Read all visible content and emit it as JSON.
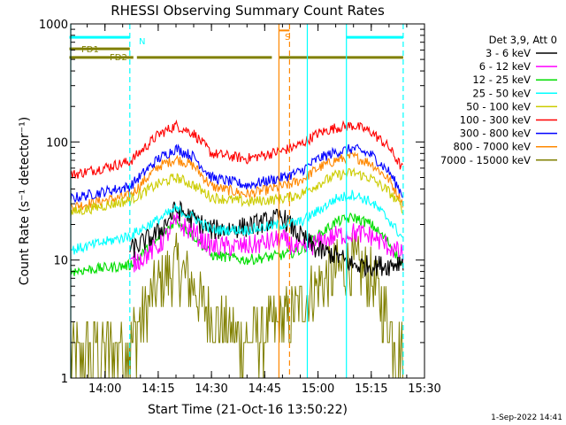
{
  "chart_data": {
    "type": "line",
    "title": "RHESSI Observing Summary Count Rates",
    "xlabel": "Start Time (21-Oct-16 13:50:22)",
    "ylabel": "Count Rate (s⁻¹ detector⁻¹)",
    "x_unit": "minutes after 13:50:22",
    "xlim": [
      "13:50:22",
      "15:30"
    ],
    "ylim": [
      1,
      1000
    ],
    "y_scale": "log",
    "grid": false,
    "x_ticks": [
      "14:00",
      "14:15",
      "14:30",
      "14:45",
      "15:00",
      "15:15",
      "15:30"
    ],
    "y_ticks": [
      "1",
      "10",
      "100",
      "1000"
    ],
    "legend_title": "Det 3,9, Att 0",
    "legend_position": "right",
    "footer": "1-Sep-2022 14:41",
    "series": [
      {
        "name": "3 - 6 keV",
        "color": "#000000",
        "x": [
          "14:07",
          "14:15",
          "14:20",
          "14:25",
          "14:30",
          "14:40",
          "14:50",
          "14:55",
          "15:00",
          "15:05",
          "15:10",
          "15:15",
          "15:20",
          "15:24"
        ],
        "values": [
          12,
          17,
          27,
          22,
          18,
          19,
          23,
          16,
          12,
          11,
          9,
          9,
          9,
          10
        ]
      },
      {
        "name": "6 - 12 keV",
        "color": "#ff00ff",
        "x": [
          "14:07",
          "14:15",
          "14:20",
          "14:25",
          "14:30",
          "14:40",
          "14:50",
          "14:55",
          "15:00",
          "15:05",
          "15:10",
          "15:15",
          "15:20",
          "15:24"
        ],
        "values": [
          9,
          13,
          21,
          17,
          13,
          13,
          15,
          12,
          14,
          16,
          17,
          16,
          13,
          11
        ]
      },
      {
        "name": "12 - 25 keV",
        "color": "#00dd00",
        "x": [
          "13:50",
          "14:07",
          "14:15",
          "14:20",
          "14:25",
          "14:30",
          "14:40",
          "14:50",
          "14:55",
          "15:00",
          "15:05",
          "15:10",
          "15:15",
          "15:20",
          "15:24"
        ],
        "values": [
          8,
          9,
          15,
          22,
          16,
          11,
          10,
          11,
          12,
          16,
          21,
          23,
          20,
          14,
          9
        ]
      },
      {
        "name": "25 - 50 keV",
        "color": "#00ffff",
        "x": [
          "13:50",
          "14:07",
          "14:15",
          "14:20",
          "14:25",
          "14:30",
          "14:40",
          "14:50",
          "14:55",
          "15:00",
          "15:05",
          "15:10",
          "15:15",
          "15:20",
          "15:24"
        ],
        "values": [
          12,
          16,
          22,
          27,
          23,
          18,
          18,
          20,
          21,
          26,
          33,
          36,
          31,
          22,
          15
        ]
      },
      {
        "name": "50 - 100 keV",
        "color": "#cccc00",
        "x": [
          "13:50",
          "14:07",
          "14:15",
          "14:20",
          "14:25",
          "14:30",
          "14:40",
          "14:50",
          "14:55",
          "15:00",
          "15:05",
          "15:10",
          "15:15",
          "15:20",
          "15:24"
        ],
        "values": [
          25,
          32,
          44,
          50,
          43,
          34,
          31,
          33,
          36,
          44,
          52,
          55,
          49,
          38,
          27
        ]
      },
      {
        "name": "100 - 300 keV",
        "color": "#ff0000",
        "x": [
          "13:50",
          "14:07",
          "14:15",
          "14:20",
          "14:25",
          "14:30",
          "14:40",
          "14:50",
          "14:55",
          "15:00",
          "15:05",
          "15:10",
          "15:15",
          "15:20",
          "15:24"
        ],
        "values": [
          52,
          68,
          115,
          138,
          118,
          80,
          72,
          84,
          95,
          118,
          132,
          138,
          122,
          90,
          58
        ]
      },
      {
        "name": "300 - 800 keV",
        "color": "#0000ff",
        "x": [
          "13:50",
          "14:07",
          "14:15",
          "14:20",
          "14:25",
          "14:30",
          "14:40",
          "14:50",
          "14:55",
          "15:00",
          "15:05",
          "15:10",
          "15:15",
          "15:20",
          "15:24"
        ],
        "values": [
          33,
          42,
          72,
          88,
          75,
          50,
          43,
          50,
          56,
          72,
          82,
          88,
          78,
          56,
          35
        ]
      },
      {
        "name": "800 - 7000 keV",
        "color": "#ff8800",
        "x": [
          "13:50",
          "14:07",
          "14:15",
          "14:20",
          "14:25",
          "14:30",
          "14:40",
          "14:50",
          "14:55",
          "15:00",
          "15:05",
          "15:10",
          "15:15",
          "15:20",
          "15:24"
        ],
        "values": [
          28,
          35,
          62,
          72,
          63,
          42,
          36,
          42,
          47,
          60,
          70,
          75,
          66,
          48,
          30
        ]
      },
      {
        "name": "7000 - 15000 keV",
        "color": "#808000",
        "x": [
          "13:50",
          "14:07",
          "14:15",
          "14:20",
          "14:25",
          "14:30",
          "14:40",
          "14:50",
          "14:55",
          "15:00",
          "15:05",
          "15:10",
          "15:15",
          "15:20",
          "15:24"
        ],
        "values": [
          1.5,
          2,
          6,
          9,
          6,
          3,
          2,
          3,
          4,
          6,
          8,
          9,
          7,
          3,
          1.5
        ]
      }
    ],
    "flags": [
      {
        "label": "N",
        "color": "#00ffff",
        "level": 770,
        "segments": [
          [
            "13:50",
            "14:07"
          ],
          [
            "15:08",
            "15:24"
          ]
        ]
      },
      {
        "label": "FD1",
        "color": "#808000",
        "level": 615,
        "segments": [
          [
            "13:50",
            "14:07"
          ]
        ]
      },
      {
        "label": "FD2",
        "color": "#808000",
        "level": 520,
        "segments": [
          [
            "13:50",
            "14:08"
          ],
          [
            "14:09",
            "14:47"
          ],
          [
            "14:49",
            "15:24"
          ]
        ]
      },
      {
        "label": "S",
        "color": "#ff8800",
        "level": 880,
        "segments": [
          [
            "14:49",
            "14:52"
          ]
        ]
      }
    ],
    "vertical_markers": [
      {
        "x": "13:50:22",
        "color": "#00ffff",
        "style": "solid"
      },
      {
        "x": "14:07",
        "color": "#00ffff",
        "style": "dashed"
      },
      {
        "x": "14:49",
        "color": "#ff8800",
        "style": "solid"
      },
      {
        "x": "14:52",
        "color": "#ff8800",
        "style": "dashed"
      },
      {
        "x": "14:57",
        "color": "#00ffff",
        "style": "solid"
      },
      {
        "x": "15:08",
        "color": "#00ffff",
        "style": "solid"
      },
      {
        "x": "15:24",
        "color": "#00ffff",
        "style": "dashed"
      }
    ]
  }
}
